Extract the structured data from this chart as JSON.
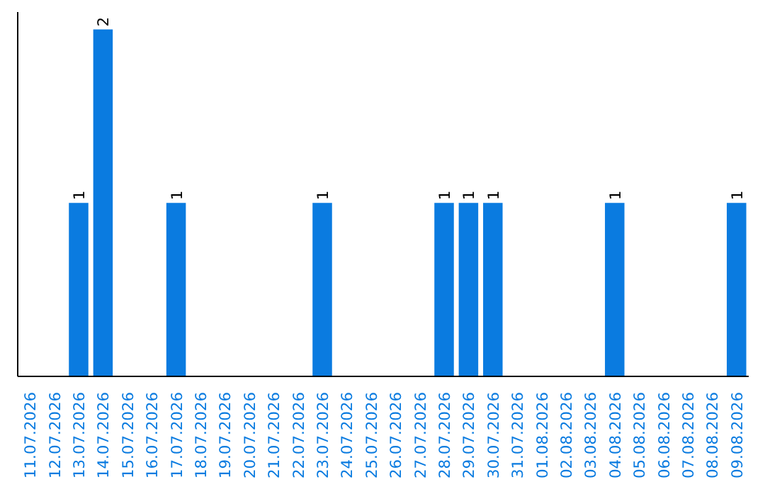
{
  "chart_data": {
    "type": "bar",
    "categories": [
      "11.07.2026",
      "12.07.2026",
      "13.07.2026",
      "14.07.2026",
      "15.07.2026",
      "16.07.2026",
      "17.07.2026",
      "18.07.2026",
      "19.07.2026",
      "20.07.2026",
      "21.07.2026",
      "22.07.2026",
      "23.07.2026",
      "24.07.2026",
      "25.07.2026",
      "26.07.2026",
      "27.07.2026",
      "28.07.2026",
      "29.07.2026",
      "30.07.2026",
      "31.07.2026",
      "01.08.2026",
      "02.08.2026",
      "03.08.2026",
      "04.08.2026",
      "05.08.2026",
      "06.08.2026",
      "07.08.2026",
      "08.08.2026",
      "09.08.2026"
    ],
    "values": [
      0,
      0,
      1,
      2,
      0,
      0,
      1,
      0,
      0,
      0,
      0,
      0,
      1,
      0,
      0,
      0,
      0,
      1,
      1,
      1,
      0,
      0,
      0,
      0,
      1,
      0,
      0,
      0,
      0,
      1
    ],
    "value_labels": [
      null,
      null,
      "1",
      "2",
      null,
      null,
      "1",
      null,
      null,
      null,
      null,
      null,
      "1",
      null,
      null,
      null,
      null,
      "1",
      "1",
      "1",
      null,
      null,
      null,
      null,
      "1",
      null,
      null,
      null,
      null,
      "1"
    ],
    "color": "#0a7be0",
    "tick_labels": "x"
  }
}
